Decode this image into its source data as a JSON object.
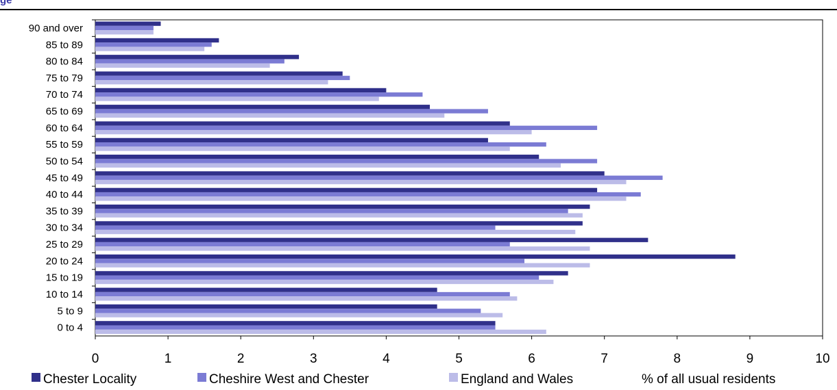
{
  "header": {
    "title_fragment": "ge"
  },
  "chart_data": {
    "type": "bar",
    "orientation": "horizontal",
    "title": "",
    "xlabel": "% of all usual residents",
    "ylabel": "",
    "xlim": [
      0,
      10
    ],
    "x_ticks": [
      "0",
      "1",
      "2",
      "3",
      "4",
      "5",
      "6",
      "7",
      "8",
      "9",
      "10"
    ],
    "categories": [
      "90 and over",
      "85 to 89",
      "80 to 84",
      "75 to 79",
      "70 to 74",
      "65 to 69",
      "60 to 64",
      "55 to 59",
      "50 to 54",
      "45 to 49",
      "40 to 44",
      "35 to 39",
      "30 to 34",
      "25 to 29",
      "20 to 24",
      "15 to 19",
      "10 to 14",
      "5 to 9",
      "0 to 4"
    ],
    "series": [
      {
        "name": "Chester Locality",
        "color": "#30308a",
        "values": [
          0.9,
          1.7,
          2.8,
          3.4,
          4.0,
          4.6,
          5.7,
          5.4,
          6.1,
          7.0,
          6.9,
          6.8,
          6.7,
          7.6,
          8.8,
          6.5,
          4.7,
          4.7,
          5.5
        ]
      },
      {
        "name": "Cheshire West and Chester",
        "color": "#7b7bd4",
        "values": [
          0.8,
          1.6,
          2.6,
          3.5,
          4.5,
          5.4,
          6.9,
          6.2,
          6.9,
          7.8,
          7.5,
          6.5,
          5.5,
          5.7,
          5.9,
          6.1,
          5.7,
          5.3,
          5.5
        ]
      },
      {
        "name": "England and Wales",
        "color": "#bcbce8",
        "values": [
          0.8,
          1.5,
          2.4,
          3.2,
          3.9,
          4.8,
          6.0,
          5.7,
          6.4,
          7.3,
          7.3,
          6.7,
          6.6,
          6.8,
          6.8,
          6.3,
          5.8,
          5.6,
          6.2
        ]
      }
    ],
    "grid": false,
    "legend_position": "bottom"
  }
}
